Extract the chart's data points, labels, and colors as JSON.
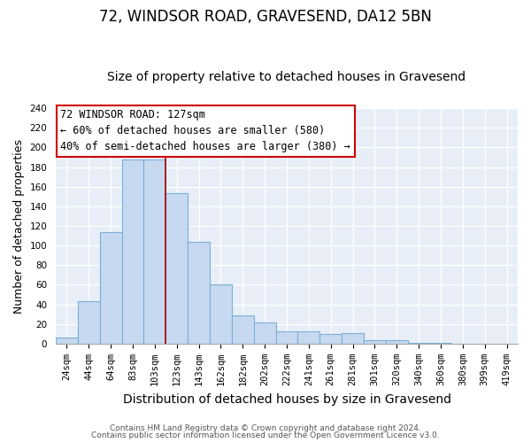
{
  "title": "72, WINDSOR ROAD, GRAVESEND, DA12 5BN",
  "subtitle": "Size of property relative to detached houses in Gravesend",
  "xlabel": "Distribution of detached houses by size in Gravesend",
  "ylabel": "Number of detached properties",
  "bar_labels": [
    "24sqm",
    "44sqm",
    "64sqm",
    "83sqm",
    "103sqm",
    "123sqm",
    "143sqm",
    "162sqm",
    "182sqm",
    "202sqm",
    "222sqm",
    "241sqm",
    "261sqm",
    "281sqm",
    "301sqm",
    "320sqm",
    "340sqm",
    "360sqm",
    "380sqm",
    "399sqm",
    "419sqm"
  ],
  "bar_values": [
    6,
    43,
    114,
    188,
    188,
    153,
    104,
    60,
    29,
    22,
    13,
    13,
    10,
    11,
    4,
    4,
    1,
    1,
    0,
    0,
    0
  ],
  "bar_color": "#c6d9f0",
  "bar_edge_color": "#7ab0d4",
  "vline_x_between": 4.5,
  "vline_color": "#aa0000",
  "annotation_title": "72 WINDSOR ROAD: 127sqm",
  "annotation_line1": "← 60% of detached houses are smaller (580)",
  "annotation_line2": "40% of semi-detached houses are larger (380) →",
  "annotation_box_facecolor": "#ffffff",
  "annotation_box_edgecolor": "#cc0000",
  "ylim": [
    0,
    240
  ],
  "yticks": [
    0,
    20,
    40,
    60,
    80,
    100,
    120,
    140,
    160,
    180,
    200,
    220,
    240
  ],
  "footer1": "Contains HM Land Registry data © Crown copyright and database right 2024.",
  "footer2": "Contains public sector information licensed under the Open Government Licence v3.0.",
  "bg_color": "#ffffff",
  "plot_bg_color": "#e8eef8",
  "title_fontsize": 12,
  "subtitle_fontsize": 10,
  "axis_label_fontsize": 9,
  "tick_fontsize": 7.5,
  "footer_fontsize": 6.5,
  "annotation_fontsize": 8.5
}
